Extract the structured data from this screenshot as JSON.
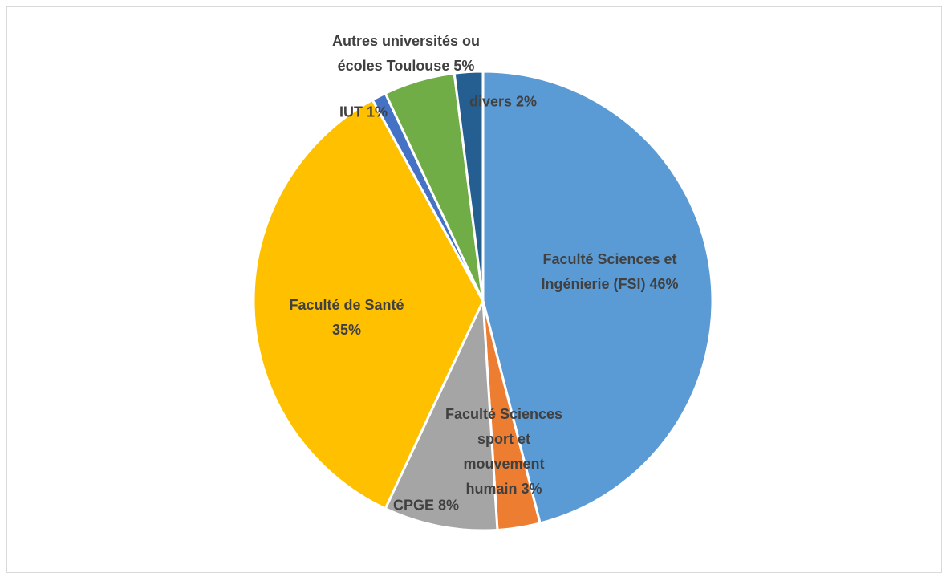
{
  "chart_data": {
    "type": "pie",
    "categories": [
      "Faculté Sciences et Ingénierie (FSI)",
      "Faculté Sciences sport et mouvement humain",
      "CPGE",
      "Faculté de Santé",
      "IUT",
      "Autres universités ou écoles Toulouse",
      "divers"
    ],
    "values": [
      46,
      3,
      8,
      35,
      1,
      5,
      2
    ],
    "value_labels": [
      "46%",
      "3%",
      "8%",
      "35%",
      "1%",
      "5%",
      "2%"
    ],
    "colors": [
      "#5b9bd5",
      "#ed7d31",
      "#a5a5a5",
      "#ffc000",
      "#4472c4",
      "#70ad47",
      "#255e91"
    ]
  }
}
